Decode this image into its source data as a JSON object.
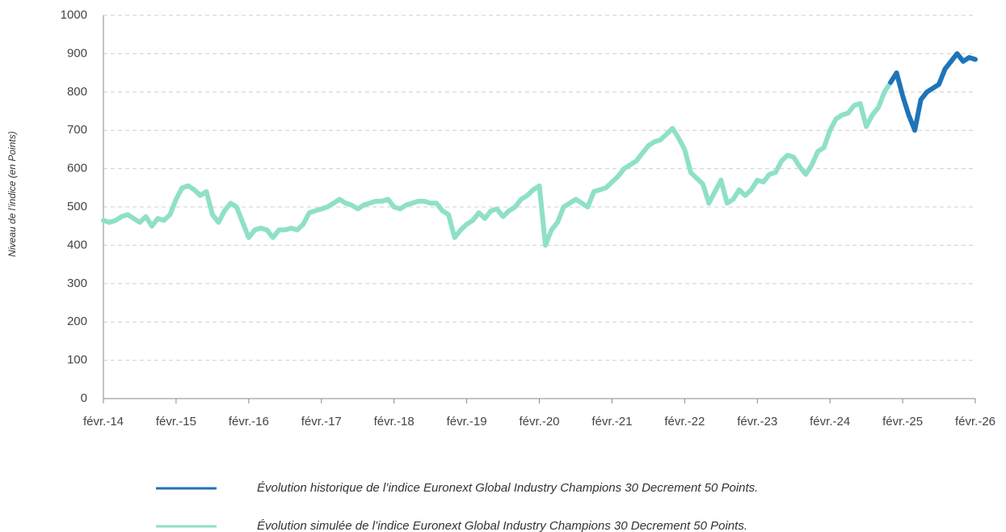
{
  "chart_data": {
    "type": "line",
    "y_label": "Niveau de l’indice (en Points)",
    "x": [
      "2014-02",
      "2014-03",
      "2014-04",
      "2014-05",
      "2014-06",
      "2014-07",
      "2014-08",
      "2014-09",
      "2014-10",
      "2014-11",
      "2014-12",
      "2015-01",
      "2015-02",
      "2015-03",
      "2015-04",
      "2015-05",
      "2015-06",
      "2015-07",
      "2015-08",
      "2015-09",
      "2015-10",
      "2015-11",
      "2015-12",
      "2016-01",
      "2016-02",
      "2016-03",
      "2016-04",
      "2016-05",
      "2016-06",
      "2016-07",
      "2016-08",
      "2016-09",
      "2016-10",
      "2016-11",
      "2016-12",
      "2017-01",
      "2017-02",
      "2017-03",
      "2017-04",
      "2017-05",
      "2017-06",
      "2017-07",
      "2017-08",
      "2017-09",
      "2017-10",
      "2017-11",
      "2017-12",
      "2018-01",
      "2018-02",
      "2018-03",
      "2018-04",
      "2018-05",
      "2018-06",
      "2018-07",
      "2018-08",
      "2018-09",
      "2018-10",
      "2018-11",
      "2018-12",
      "2019-01",
      "2019-02",
      "2019-03",
      "2019-04",
      "2019-05",
      "2019-06",
      "2019-07",
      "2019-08",
      "2019-09",
      "2019-10",
      "2019-11",
      "2019-12",
      "2020-01",
      "2020-02",
      "2020-03",
      "2020-04",
      "2020-05",
      "2020-06",
      "2020-07",
      "2020-08",
      "2020-09",
      "2020-10",
      "2020-11",
      "2020-12",
      "2021-01",
      "2021-02",
      "2021-03",
      "2021-04",
      "2021-05",
      "2021-06",
      "2021-07",
      "2021-08",
      "2021-09",
      "2021-10",
      "2021-11",
      "2021-12",
      "2022-01",
      "2022-02",
      "2022-03",
      "2022-04",
      "2022-05",
      "2022-06",
      "2022-07",
      "2022-08",
      "2022-09",
      "2022-10",
      "2022-11",
      "2022-12",
      "2023-01",
      "2023-02",
      "2023-03",
      "2023-04",
      "2023-05",
      "2023-06",
      "2023-07",
      "2023-08",
      "2023-09",
      "2023-10",
      "2023-11",
      "2023-12",
      "2024-01",
      "2024-02",
      "2024-03",
      "2024-04",
      "2024-05",
      "2024-06",
      "2024-07",
      "2024-08",
      "2024-09",
      "2024-10",
      "2024-11",
      "2024-12",
      "2025-01",
      "2025-02",
      "2025-03",
      "2025-04",
      "2025-05",
      "2025-06",
      "2025-07",
      "2025-08",
      "2025-09",
      "2025-10",
      "2025-11",
      "2025-12",
      "2026-01",
      "2026-02"
    ],
    "xlim": [
      "2014-02",
      "2026-02"
    ],
    "xticks": [
      {
        "value": "2014-02",
        "label": "févr.-14"
      },
      {
        "value": "2015-02",
        "label": "févr.-15"
      },
      {
        "value": "2016-02",
        "label": "févr.-16"
      },
      {
        "value": "2017-02",
        "label": "févr.-17"
      },
      {
        "value": "2018-02",
        "label": "févr.-18"
      },
      {
        "value": "2019-02",
        "label": "févr.-19"
      },
      {
        "value": "2020-02",
        "label": "févr.-20"
      },
      {
        "value": "2021-02",
        "label": "févr.-21"
      },
      {
        "value": "2022-02",
        "label": "févr.-22"
      },
      {
        "value": "2023-02",
        "label": "févr.-23"
      },
      {
        "value": "2024-02",
        "label": "févr.-24"
      },
      {
        "value": "2025-02",
        "label": "févr.-25"
      },
      {
        "value": "2026-02",
        "label": "févr.-26"
      }
    ],
    "ylim": [
      0,
      1000
    ],
    "yticks": [
      0,
      100,
      200,
      300,
      400,
      500,
      600,
      700,
      800,
      900,
      1000
    ],
    "grid": true,
    "series": [
      {
        "name": "Évolution historique de l’indice Euronext Global Industry Champions 30 Decrement 50 Points.",
        "color": "#1f74b8",
        "values": [
          null,
          null,
          null,
          null,
          null,
          null,
          null,
          null,
          null,
          null,
          null,
          null,
          null,
          null,
          null,
          null,
          null,
          null,
          null,
          null,
          null,
          null,
          null,
          null,
          null,
          null,
          null,
          null,
          null,
          null,
          null,
          null,
          null,
          null,
          null,
          null,
          null,
          null,
          null,
          null,
          null,
          null,
          null,
          null,
          null,
          null,
          null,
          null,
          null,
          null,
          null,
          null,
          null,
          null,
          null,
          null,
          null,
          null,
          null,
          null,
          null,
          null,
          null,
          null,
          null,
          null,
          null,
          null,
          null,
          null,
          null,
          null,
          null,
          null,
          null,
          null,
          null,
          null,
          null,
          null,
          null,
          null,
          null,
          null,
          null,
          null,
          null,
          null,
          null,
          null,
          null,
          null,
          null,
          null,
          null,
          null,
          null,
          null,
          null,
          null,
          null,
          null,
          null,
          null,
          null,
          null,
          null,
          null,
          null,
          null,
          null,
          null,
          null,
          null,
          null,
          null,
          null,
          null,
          null,
          null,
          null,
          null,
          null,
          null,
          null,
          null,
          null,
          null,
          null,
          null,
          825,
          850,
          790,
          740,
          700,
          780,
          800,
          810,
          820,
          860,
          880,
          900,
          880,
          890,
          885
        ]
      },
      {
        "name": "Évolution simulée de l’indice Euronext Global Industry Champions 30 Decrement 50 Points.",
        "color": "#8fe0c8",
        "values": [
          465,
          460,
          465,
          475,
          480,
          470,
          460,
          475,
          450,
          470,
          465,
          480,
          520,
          550,
          555,
          545,
          530,
          540,
          480,
          460,
          490,
          510,
          500,
          460,
          420,
          440,
          445,
          440,
          420,
          440,
          440,
          445,
          440,
          455,
          485,
          490,
          495,
          500,
          510,
          520,
          510,
          505,
          495,
          505,
          510,
          515,
          515,
          520,
          500,
          495,
          505,
          510,
          515,
          515,
          510,
          510,
          490,
          480,
          420,
          440,
          455,
          465,
          485,
          470,
          490,
          495,
          475,
          490,
          500,
          520,
          530,
          545,
          555,
          400,
          440,
          460,
          500,
          510,
          520,
          510,
          500,
          540,
          545,
          550,
          565,
          580,
          600,
          610,
          620,
          640,
          660,
          670,
          675,
          690,
          705,
          680,
          650,
          590,
          575,
          560,
          510,
          540,
          570,
          510,
          520,
          545,
          530,
          545,
          570,
          565,
          585,
          590,
          620,
          635,
          630,
          605,
          585,
          610,
          645,
          655,
          700,
          730,
          740,
          745,
          765,
          770,
          710,
          740,
          760,
          800,
          825,
          null,
          null,
          null,
          null,
          null,
          null,
          null,
          null,
          null,
          null,
          null,
          null,
          null,
          null
        ]
      }
    ]
  }
}
